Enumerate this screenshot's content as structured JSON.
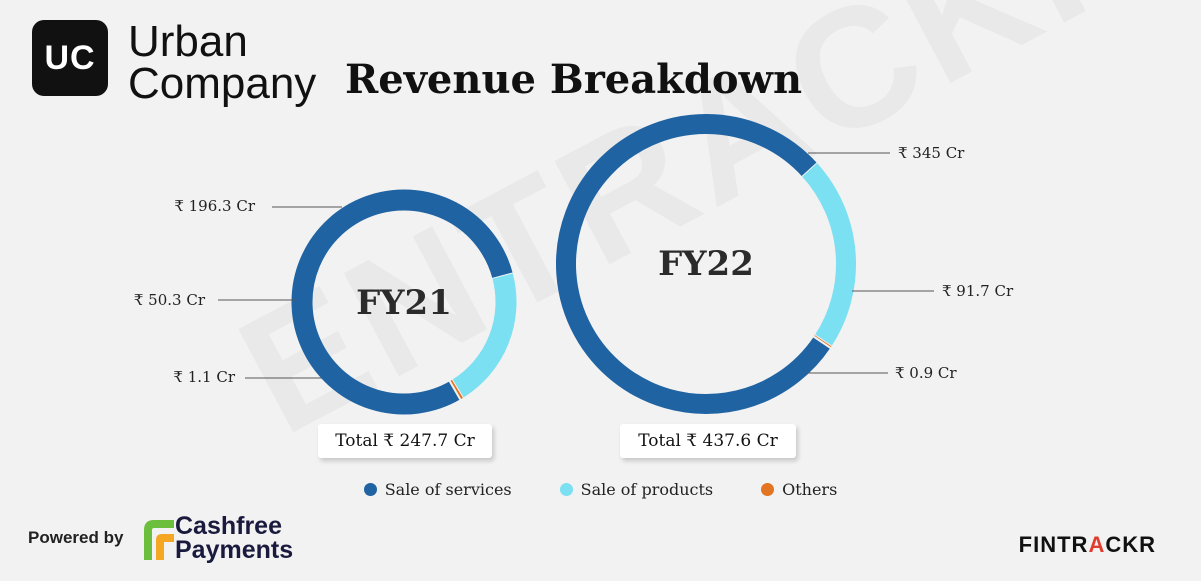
{
  "brand": {
    "logo_mark": "UC",
    "line1": "Urban",
    "line2": "Company"
  },
  "title": "Revenue Breakdown",
  "watermark": "ENTRACKR",
  "colors": {
    "services": "#1f63a3",
    "products": "#7ae0f2",
    "others": "#e37422"
  },
  "chart_data": [
    {
      "type": "pie",
      "variant": "donut",
      "center_label": "FY21",
      "total_label": "Total ₹ 247.7 Cr",
      "categories": [
        "Sale of services",
        "Sale of products",
        "Others"
      ],
      "values": [
        196.3,
        50.3,
        1.1
      ],
      "value_labels": [
        "₹ 196.3 Cr",
        "₹ 50.3 Cr",
        "₹ 1.1 Cr"
      ]
    },
    {
      "type": "pie",
      "variant": "donut",
      "center_label": "FY22",
      "total_label": "Total ₹ 437.6 Cr",
      "categories": [
        "Sale of services",
        "Sale of products",
        "Others"
      ],
      "values": [
        345,
        91.7,
        0.9
      ],
      "value_labels": [
        "₹ 345 Cr",
        "₹ 91.7 Cr",
        "₹ 0.9 Cr"
      ]
    }
  ],
  "legend": [
    {
      "label": "Sale of services",
      "color": "#1f63a3"
    },
    {
      "label": "Sale of products",
      "color": "#7ae0f2"
    },
    {
      "label": "Others",
      "color": "#e37422"
    }
  ],
  "footer": {
    "powered_by": "Powered by",
    "sponsor_line1": "Cashfree",
    "sponsor_line2": "Payments",
    "publisher_a": "FINTR",
    "publisher_b": "A",
    "publisher_c": "CKR"
  }
}
